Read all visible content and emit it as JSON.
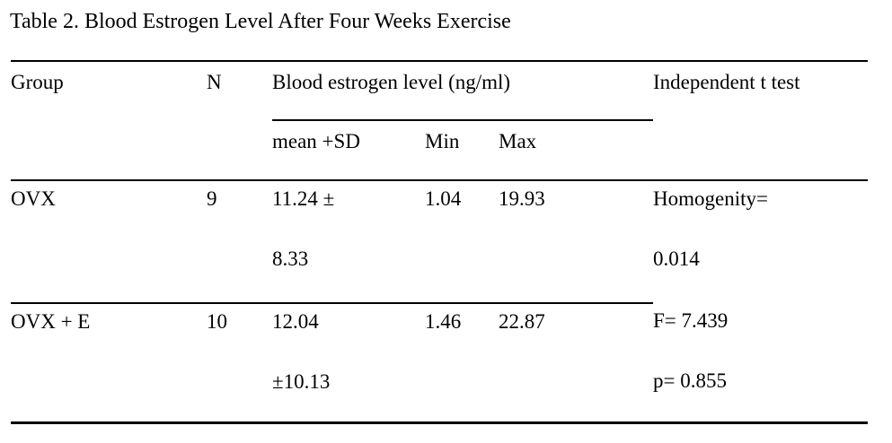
{
  "title": "Table 2. Blood Estrogen Level After Four Weeks Exercise",
  "table": {
    "columns": {
      "group": "Group",
      "n": "N",
      "blood_estrogen": "Blood estrogen level (ng/ml)",
      "mean_sd": "mean +SD",
      "min": "Min",
      "max": "Max",
      "t_test": "Independent t test"
    },
    "rows": [
      {
        "group": "OVX",
        "n": "9",
        "mean_sd_line1": "11.24 ±",
        "mean_sd_line2": "8.33",
        "min": "1.04",
        "max": "19.93",
        "t_test_line1": "Homogenity=",
        "t_test_line2": "0.014"
      },
      {
        "group": "OVX + E",
        "n": "10",
        "mean_sd_line1": "12.04",
        "mean_sd_line2": "±10.13",
        "min": "1.46",
        "max": "22.87",
        "t_test_line1": "F= 7.439",
        "t_test_line2": "p= 0.855"
      }
    ]
  },
  "colors": {
    "text": "#000000",
    "background": "#ffffff",
    "rule": "#000000"
  }
}
